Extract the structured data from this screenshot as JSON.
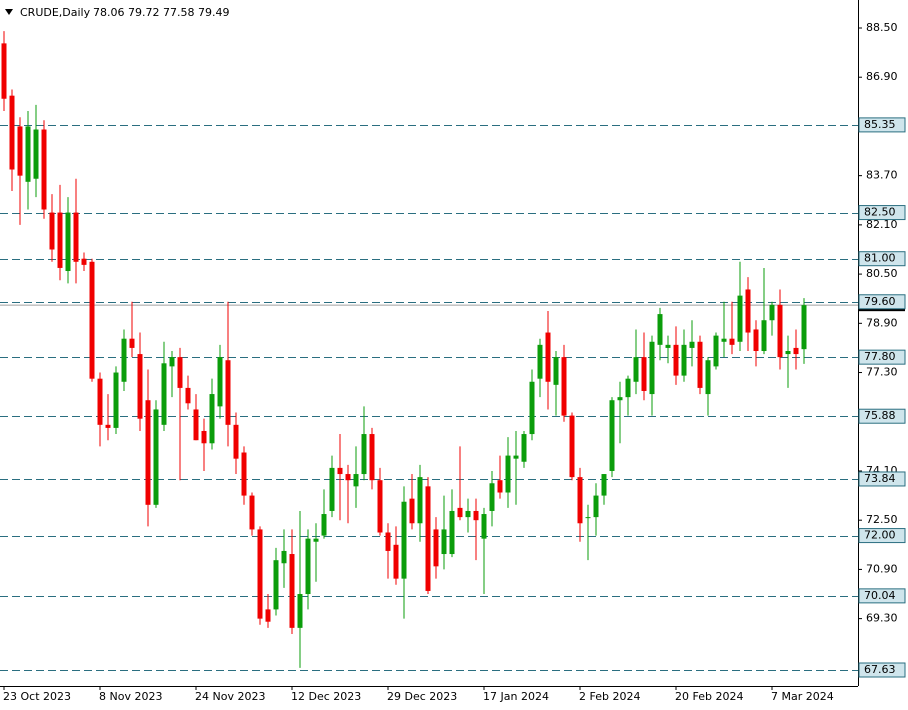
{
  "chart_data": {
    "type": "candlestick",
    "title": "CRUDE,Daily",
    "categories": [
      "23 Oct 2023",
      null,
      null,
      null,
      null,
      null,
      null,
      null,
      null,
      null,
      null,
      null,
      "8 Nov 2023",
      null,
      null,
      null,
      null,
      null,
      null,
      null,
      null,
      null,
      null,
      null,
      "24 Nov 2023",
      null,
      null,
      null,
      null,
      null,
      null,
      null,
      null,
      null,
      null,
      null,
      "12 Dec 2023",
      null,
      null,
      null,
      null,
      null,
      null,
      null,
      null,
      null,
      null,
      null,
      "29 Dec 2023",
      null,
      null,
      null,
      null,
      null,
      null,
      null,
      null,
      null,
      null,
      null,
      "17 Jan 2024",
      null,
      null,
      null,
      null,
      null,
      null,
      null,
      null,
      null,
      null,
      null,
      "2 Feb 2024",
      null,
      null,
      null,
      null,
      null,
      null,
      null,
      null,
      null,
      null,
      null,
      "20 Feb 2024",
      null,
      null,
      null,
      null,
      null,
      null,
      null,
      null,
      null,
      null,
      null,
      "7 Mar 2024",
      null,
      null,
      null,
      null
    ],
    "open": [
      88.0,
      86.3,
      85.3,
      83.5,
      83.6,
      85.2,
      82.5,
      82.5,
      80.6,
      82.5,
      81.0,
      80.9,
      77.1,
      75.6,
      75.5,
      77.0,
      78.4,
      77.9,
      76.4,
      73.0,
      75.6,
      77.5,
      77.8,
      76.8,
      76.1,
      75.4,
      75.0,
      76.2,
      77.7,
      75.6,
      74.7,
      73.3,
      72.2,
      69.6,
      69.6,
      71.1,
      71.4,
      69.0,
      70.1,
      71.8,
      72.0,
      72.8,
      74.2,
      74.0,
      73.6,
      74.0,
      75.3,
      73.8,
      72.1,
      71.7,
      70.6,
      73.2,
      72.4,
      73.6,
      72.2,
      71.4,
      71.4,
      72.9,
      72.6,
      72.8,
      71.9,
      72.8,
      73.8,
      73.4,
      74.5,
      74.4,
      75.3,
      77.1,
      78.6,
      76.9,
      77.8,
      75.9,
      73.9,
      72.6,
      72.6,
      73.3,
      74.1,
      76.4,
      76.5,
      77.0,
      77.8,
      76.6,
      78.2,
      78.1,
      78.2,
      77.2,
      78.1,
      78.3,
      76.6,
      77.5,
      78.3,
      78.4,
      78.3,
      80.0,
      78.7,
      78.0,
      79.0,
      79.5,
      77.9,
      78.1,
      78.06
    ],
    "high": [
      88.4,
      86.5,
      85.6,
      85.8,
      86.0,
      85.5,
      83.1,
      83.4,
      83.0,
      83.6,
      81.2,
      81.0,
      77.3,
      76.6,
      77.5,
      78.7,
      79.6,
      78.6,
      77.4,
      76.4,
      78.3,
      78.0,
      78.1,
      77.2,
      76.6,
      75.8,
      77.1,
      78.2,
      79.6,
      76.0,
      74.9,
      73.4,
      72.3,
      70.1,
      71.6,
      72.2,
      72.2,
      72.8,
      72.2,
      72.4,
      73.5,
      74.6,
      75.3,
      74.3,
      74.9,
      76.2,
      75.5,
      74.2,
      72.4,
      72.3,
      73.6,
      74.0,
      74.3,
      73.9,
      72.6,
      73.3,
      73.5,
      74.9,
      73.2,
      73.2,
      72.9,
      74.1,
      74.6,
      75.2,
      75.4,
      75.4,
      77.4,
      78.4,
      79.3,
      78.0,
      78.2,
      76.0,
      74.2,
      73.0,
      73.7,
      74.0,
      76.5,
      77.0,
      77.2,
      78.7,
      78.6,
      78.5,
      79.4,
      78.5,
      78.8,
      78.7,
      79.0,
      78.5,
      77.8,
      78.6,
      79.6,
      79.6,
      80.9,
      80.4,
      79.0,
      80.7,
      79.6,
      80.0,
      78.5,
      78.7,
      79.72
    ],
    "low": [
      85.8,
      83.2,
      82.1,
      82.6,
      83.0,
      82.3,
      80.9,
      80.3,
      80.2,
      80.2,
      80.6,
      77.0,
      74.9,
      75.1,
      75.3,
      76.7,
      77.8,
      75.4,
      72.3,
      72.9,
      75.4,
      76.5,
      73.8,
      76.1,
      75.1,
      74.1,
      74.8,
      75.8,
      74.9,
      74.0,
      73.0,
      72.0,
      69.1,
      69.0,
      69.4,
      70.3,
      68.8,
      67.7,
      69.6,
      70.5,
      71.9,
      72.6,
      72.5,
      72.4,
      72.9,
      73.8,
      73.5,
      72.0,
      70.6,
      70.4,
      69.3,
      72.2,
      71.8,
      70.1,
      70.6,
      70.9,
      71.3,
      72.5,
      72.1,
      71.2,
      70.1,
      72.3,
      73.2,
      72.9,
      73.0,
      74.2,
      75.1,
      76.5,
      76.1,
      75.9,
      75.7,
      73.8,
      71.8,
      71.2,
      72.0,
      73.0,
      73.9,
      75.0,
      75.9,
      76.6,
      76.4,
      75.9,
      77.7,
      77.6,
      76.9,
      77.0,
      77.5,
      76.6,
      75.9,
      77.4,
      77.8,
      77.9,
      78.0,
      78.0,
      77.5,
      77.9,
      78.5,
      77.4,
      76.8,
      77.4,
      77.58
    ],
    "close": [
      86.2,
      83.9,
      83.7,
      85.3,
      85.2,
      82.6,
      81.3,
      80.7,
      82.5,
      80.9,
      80.8,
      77.1,
      75.6,
      75.5,
      77.3,
      78.4,
      78.1,
      75.8,
      73.0,
      76.1,
      77.6,
      77.8,
      76.8,
      76.3,
      75.1,
      75.0,
      76.6,
      77.8,
      75.6,
      74.5,
      73.3,
      72.2,
      69.3,
      69.2,
      71.2,
      71.5,
      69.0,
      70.1,
      71.9,
      71.9,
      72.7,
      74.2,
      74.0,
      73.8,
      74.0,
      75.3,
      73.8,
      72.1,
      71.5,
      70.6,
      73.1,
      72.4,
      73.9,
      70.2,
      71.0,
      72.2,
      72.8,
      72.6,
      72.8,
      72.5,
      72.7,
      73.7,
      73.4,
      74.6,
      74.6,
      75.3,
      77.0,
      78.2,
      77.0,
      77.8,
      75.9,
      73.9,
      72.4,
      72.6,
      73.3,
      74.0,
      76.4,
      76.5,
      77.1,
      77.8,
      76.7,
      78.3,
      79.2,
      78.2,
      77.2,
      78.2,
      78.3,
      76.8,
      77.7,
      78.5,
      78.4,
      78.2,
      79.8,
      78.6,
      78.0,
      79.0,
      79.5,
      77.8,
      78.0,
      77.9,
      79.49
    ],
    "up_color": "#0b9d0b",
    "down_color": "#f00000",
    "ylim": [
      67.11,
      89.41
    ],
    "yticks": [
      {
        "value": 88.5,
        "label": "88.50"
      },
      {
        "value": 86.9,
        "label": "86.90"
      },
      {
        "value": 83.7,
        "label": "83.70"
      },
      {
        "value": 82.1,
        "label": "82.10"
      },
      {
        "value": 80.5,
        "label": "80.50"
      },
      {
        "value": 78.9,
        "label": "78.90"
      },
      {
        "value": 77.3,
        "label": "77.30"
      },
      {
        "value": 74.1,
        "label": "74.10"
      },
      {
        "value": 72.5,
        "label": "72.50"
      },
      {
        "value": 70.9,
        "label": "70.90"
      },
      {
        "value": 69.3,
        "label": "69.30"
      }
    ],
    "levels": [
      {
        "value": 85.35,
        "label": "85.35"
      },
      {
        "value": 82.5,
        "label": "82.50"
      },
      {
        "value": 81.0,
        "label": "81.00"
      },
      {
        "value": 79.6,
        "label": "79.60"
      },
      {
        "value": 77.8,
        "label": "77.80"
      },
      {
        "value": 75.88,
        "label": "75.88"
      },
      {
        "value": 73.84,
        "label": "73.84"
      },
      {
        "value": 72.0,
        "label": "72.00"
      },
      {
        "value": 70.04,
        "label": "70.04"
      },
      {
        "value": 67.63,
        "label": "67.63"
      }
    ],
    "level_color": "#2a6e80",
    "last_price_line": true
  }
}
